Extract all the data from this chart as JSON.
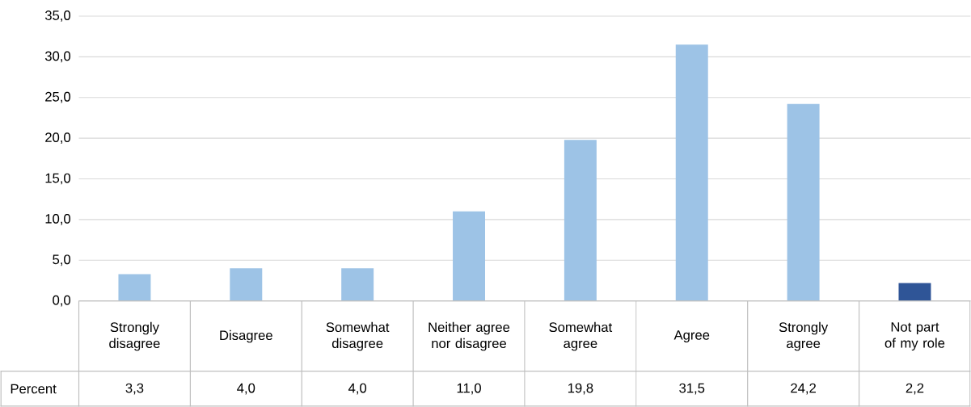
{
  "chart_data": {
    "type": "bar",
    "categories": [
      "Strongly disagree",
      "Disagree",
      "Somewhat disagree",
      "Neither agree nor disagree",
      "Somewhat agree",
      "Agree",
      "Strongly agree",
      "Not part of my role"
    ],
    "series": [
      {
        "name": "Percent",
        "colors": [
          "#9dc3e6",
          "#9dc3e6",
          "#9dc3e6",
          "#9dc3e6",
          "#9dc3e6",
          "#9dc3e6",
          "#9dc3e6",
          "#2f5597"
        ],
        "values": [
          3.3,
          4.0,
          4.0,
          11.0,
          19.8,
          31.5,
          24.2,
          2.2
        ],
        "value_labels": [
          "3,3",
          "4,0",
          "4,0",
          "11,0",
          "19,8",
          "31,5",
          "24,2",
          "2,2"
        ]
      }
    ],
    "ylim": [
      0,
      35
    ],
    "yticks": [
      {
        "value": 0,
        "label": "0,0"
      },
      {
        "value": 5,
        "label": "5,0"
      },
      {
        "value": 10,
        "label": "10,0"
      },
      {
        "value": 15,
        "label": "15,0"
      },
      {
        "value": 20,
        "label": "20,0"
      },
      {
        "value": 25,
        "label": "25,0"
      },
      {
        "value": 30,
        "label": "30,0"
      },
      {
        "value": 35,
        "label": "35,0"
      }
    ],
    "grid": "y"
  }
}
